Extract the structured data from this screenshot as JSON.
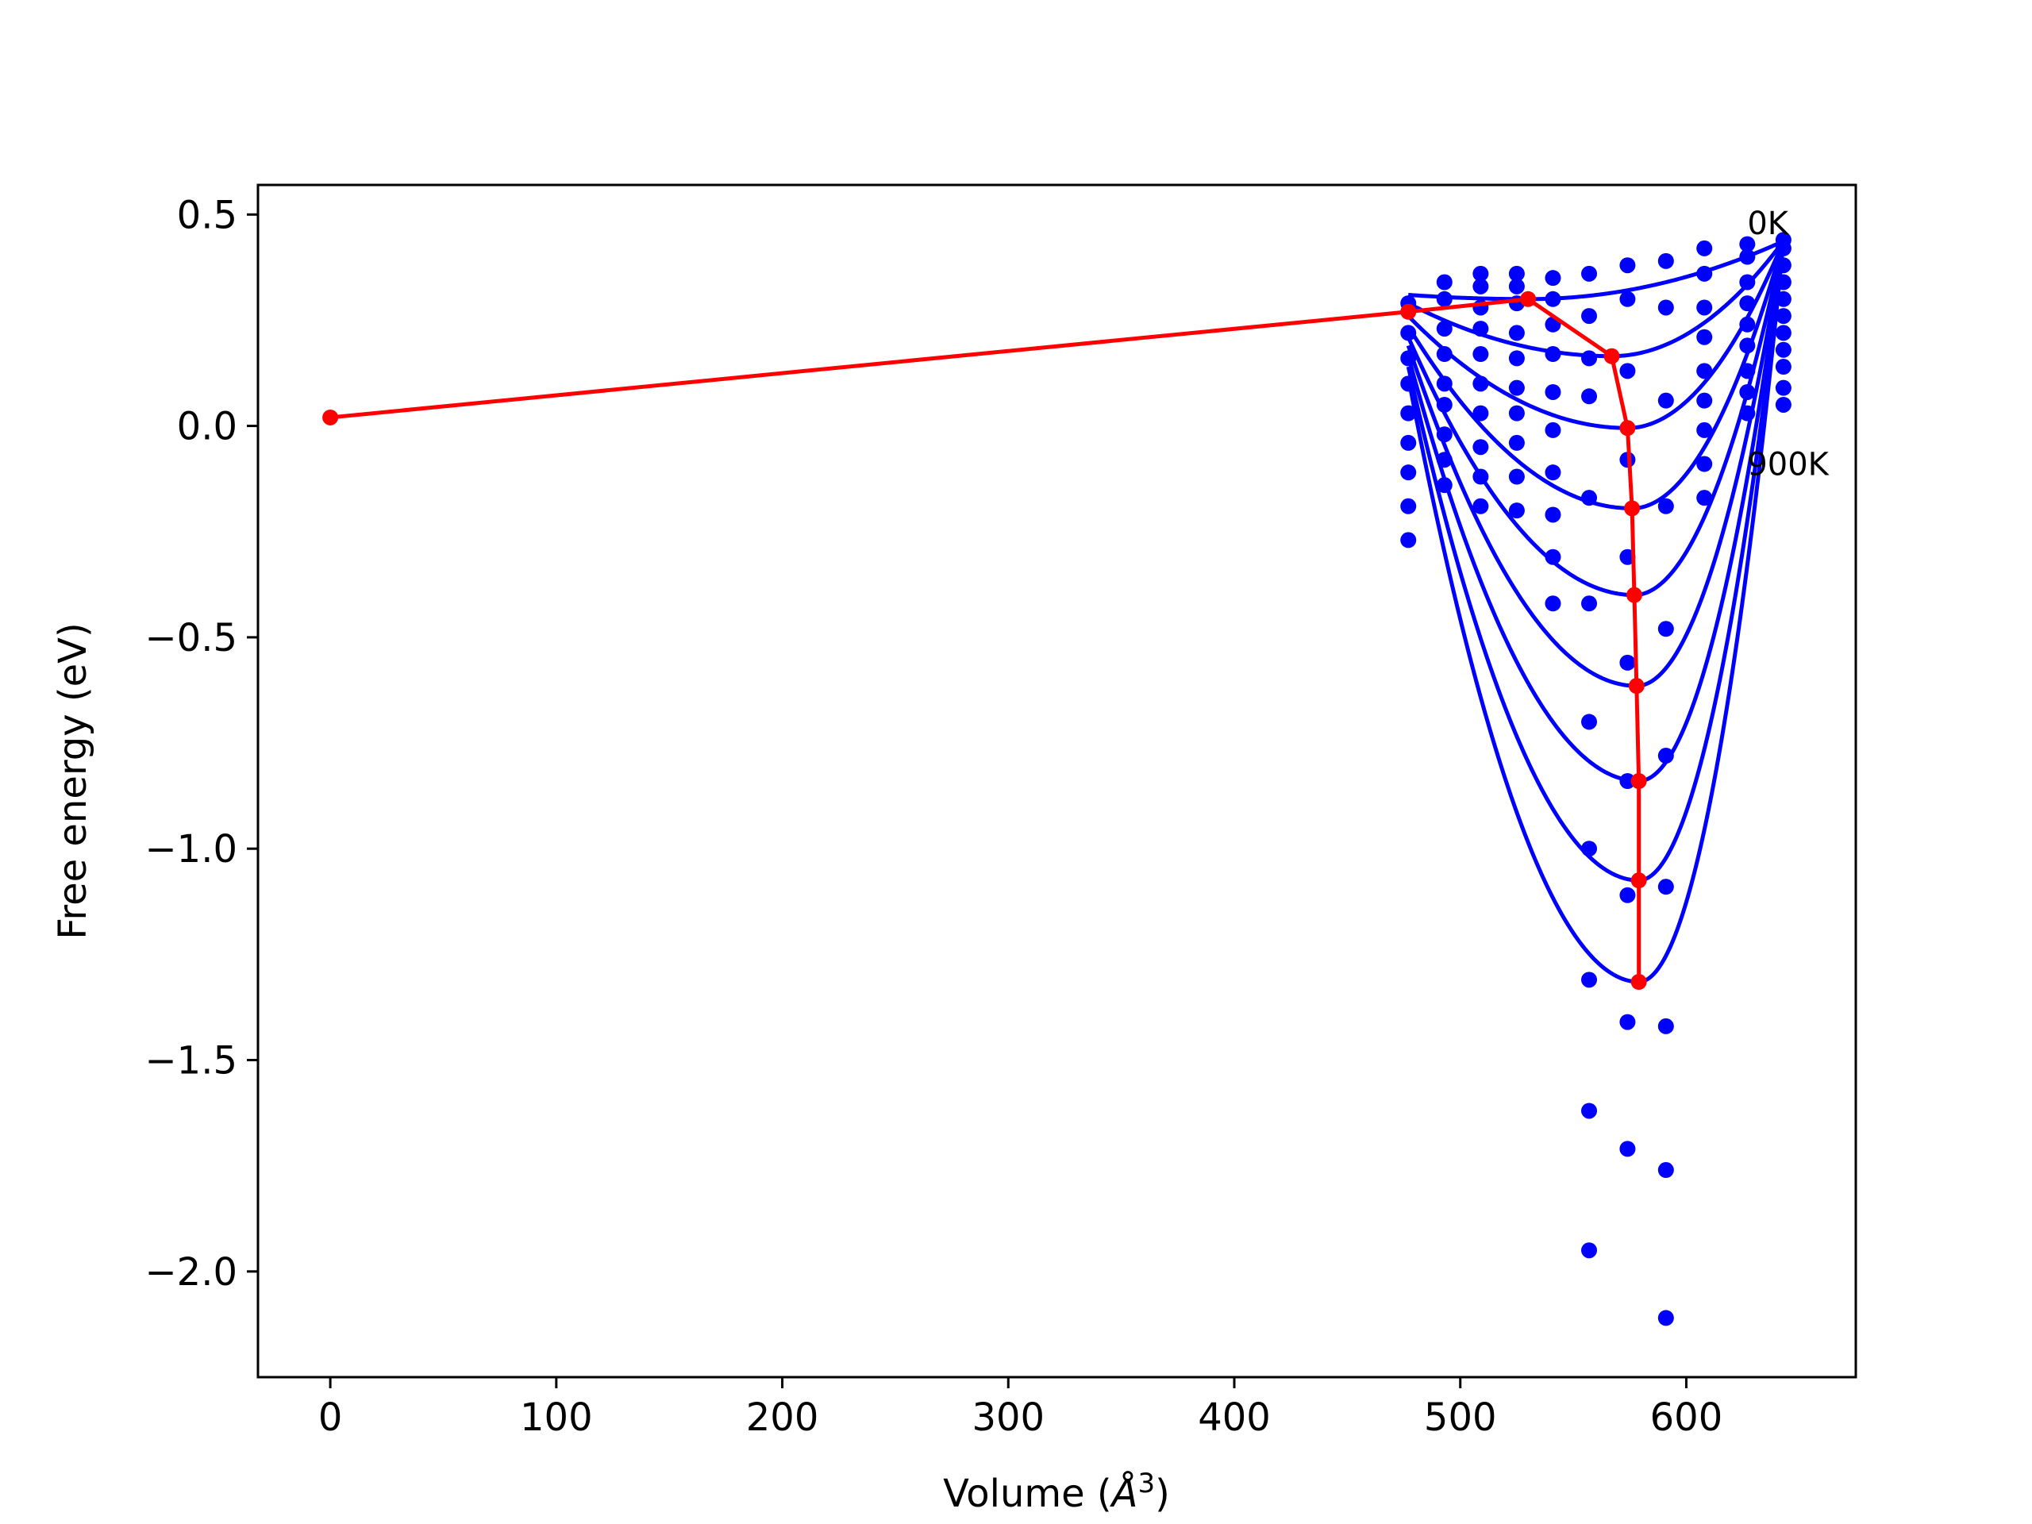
{
  "chart_data": {
    "type": "line",
    "title": "",
    "xlabel": "Volume (",
    "xlabel_unit_base": "Å",
    "xlabel_unit_exp": "3",
    "xlabel_close": ")",
    "ylabel": "Free energy (eV)",
    "xlim": [
      -32,
      675
    ],
    "ylim": [
      -2.25,
      0.57
    ],
    "grid": false,
    "legend": "none",
    "x_ticks": [
      {
        "value": 0,
        "label": "0"
      },
      {
        "value": 100,
        "label": "100"
      },
      {
        "value": 200,
        "label": "200"
      },
      {
        "value": 300,
        "label": "300"
      },
      {
        "value": 400,
        "label": "400"
      },
      {
        "value": 500,
        "label": "500"
      },
      {
        "value": 600,
        "label": "600"
      }
    ],
    "y_ticks": [
      {
        "value": 0.5,
        "label": "0.5"
      },
      {
        "value": 0.0,
        "label": "0.0"
      },
      {
        "value": -0.5,
        "label": "−0.5"
      },
      {
        "value": -1.0,
        "label": "−1.0"
      },
      {
        "value": -1.5,
        "label": "−1.5"
      },
      {
        "value": -2.0,
        "label": "−2.0"
      }
    ],
    "annotations": [
      {
        "text": "0K",
        "x": 627,
        "y": 0.48
      },
      {
        "text": "900K",
        "x": 627,
        "y": -0.09
      }
    ],
    "colors": {
      "fits": "#0000ff",
      "points": "#0000ff",
      "minimum_path": "#ff0000"
    },
    "volumes": [
      477,
      493,
      509,
      525,
      541,
      557,
      574,
      591,
      608,
      627,
      643
    ],
    "fit_curves": [
      {
        "v_min": 530,
        "f_min": 0.3,
        "f_left": 0.31,
        "f_right": 0.437
      },
      {
        "v_min": 567,
        "f_min": 0.165,
        "f_left": 0.29,
        "f_right": 0.437
      },
      {
        "v_min": 574,
        "f_min": -0.005,
        "f_left": 0.26,
        "f_right": 0.437
      },
      {
        "v_min": 576,
        "f_min": -0.195,
        "f_left": 0.235,
        "f_right": 0.437
      },
      {
        "v_min": 577,
        "f_min": -0.4,
        "f_left": 0.21,
        "f_right": 0.437
      },
      {
        "v_min": 578,
        "f_min": -0.615,
        "f_left": 0.19,
        "f_right": 0.437
      },
      {
        "v_min": 579,
        "f_min": -0.84,
        "f_left": 0.165,
        "f_right": 0.437
      },
      {
        "v_min": 579,
        "f_min": -1.075,
        "f_left": 0.14,
        "f_right": 0.437
      },
      {
        "v_min": 579,
        "f_min": -1.315,
        "f_left": 0.115,
        "f_right": 0.437
      }
    ],
    "data_points": [
      [
        477,
        0.29
      ],
      [
        477,
        0.22
      ],
      [
        477,
        0.16
      ],
      [
        477,
        0.1
      ],
      [
        477,
        0.03
      ],
      [
        477,
        -0.04
      ],
      [
        477,
        -0.11
      ],
      [
        477,
        -0.19
      ],
      [
        477,
        -0.27
      ],
      [
        493,
        0.34
      ],
      [
        493,
        0.3
      ],
      [
        493,
        0.23
      ],
      [
        493,
        0.17
      ],
      [
        493,
        0.1
      ],
      [
        493,
        0.05
      ],
      [
        493,
        -0.02
      ],
      [
        493,
        -0.08
      ],
      [
        493,
        -0.14
      ],
      [
        509,
        0.36
      ],
      [
        509,
        0.33
      ],
      [
        509,
        0.28
      ],
      [
        509,
        0.23
      ],
      [
        509,
        0.17
      ],
      [
        509,
        0.1
      ],
      [
        509,
        0.03
      ],
      [
        509,
        -0.05
      ],
      [
        509,
        -0.12
      ],
      [
        509,
        -0.19
      ],
      [
        525,
        0.36
      ],
      [
        525,
        0.33
      ],
      [
        525,
        0.29
      ],
      [
        525,
        0.22
      ],
      [
        525,
        0.16
      ],
      [
        525,
        0.09
      ],
      [
        525,
        0.03
      ],
      [
        525,
        -0.04
      ],
      [
        525,
        -0.12
      ],
      [
        525,
        -0.2
      ],
      [
        541,
        0.35
      ],
      [
        541,
        0.3
      ],
      [
        541,
        0.24
      ],
      [
        541,
        0.17
      ],
      [
        541,
        0.08
      ],
      [
        541,
        -0.01
      ],
      [
        541,
        -0.11
      ],
      [
        541,
        -0.21
      ],
      [
        541,
        -0.31
      ],
      [
        541,
        -0.42
      ],
      [
        557,
        0.36
      ],
      [
        557,
        0.26
      ],
      [
        557,
        0.16
      ],
      [
        557,
        0.07
      ],
      [
        557,
        -0.17
      ],
      [
        557,
        -0.42
      ],
      [
        557,
        -0.7
      ],
      [
        557,
        -1.0
      ],
      [
        557,
        -1.31
      ],
      [
        557,
        -1.62
      ],
      [
        557,
        -1.95
      ],
      [
        574,
        0.38
      ],
      [
        574,
        0.3
      ],
      [
        574,
        0.13
      ],
      [
        574,
        -0.08
      ],
      [
        574,
        -0.31
      ],
      [
        574,
        -0.56
      ],
      [
        574,
        -0.84
      ],
      [
        574,
        -1.11
      ],
      [
        574,
        -1.41
      ],
      [
        574,
        -1.71
      ],
      [
        591,
        0.39
      ],
      [
        591,
        0.28
      ],
      [
        591,
        0.06
      ],
      [
        591,
        -0.19
      ],
      [
        591,
        -0.48
      ],
      [
        591,
        -0.78
      ],
      [
        591,
        -1.09
      ],
      [
        591,
        -1.42
      ],
      [
        591,
        -1.76
      ],
      [
        591,
        -2.11
      ],
      [
        608,
        0.42
      ],
      [
        608,
        0.36
      ],
      [
        608,
        0.28
      ],
      [
        608,
        0.21
      ],
      [
        608,
        0.13
      ],
      [
        608,
        0.06
      ],
      [
        608,
        -0.01
      ],
      [
        608,
        -0.09
      ],
      [
        608,
        -0.17
      ],
      [
        627,
        0.43
      ],
      [
        627,
        0.4
      ],
      [
        627,
        0.34
      ],
      [
        627,
        0.29
      ],
      [
        627,
        0.24
      ],
      [
        627,
        0.19
      ],
      [
        627,
        0.13
      ],
      [
        627,
        0.08
      ],
      [
        627,
        0.03
      ],
      [
        643,
        0.44
      ],
      [
        643,
        0.42
      ],
      [
        643,
        0.38
      ],
      [
        643,
        0.34
      ],
      [
        643,
        0.3
      ],
      [
        643,
        0.26
      ],
      [
        643,
        0.22
      ],
      [
        643,
        0.18
      ],
      [
        643,
        0.14
      ],
      [
        643,
        0.09
      ],
      [
        643,
        0.05
      ]
    ],
    "minimum_path": {
      "x": [
        0,
        477,
        530,
        567,
        574,
        576,
        577,
        578,
        579,
        579,
        579
      ],
      "y": [
        0.02,
        0.27,
        0.3,
        0.165,
        -0.005,
        -0.195,
        -0.4,
        -0.615,
        -0.84,
        -1.075,
        -1.315
      ]
    }
  }
}
